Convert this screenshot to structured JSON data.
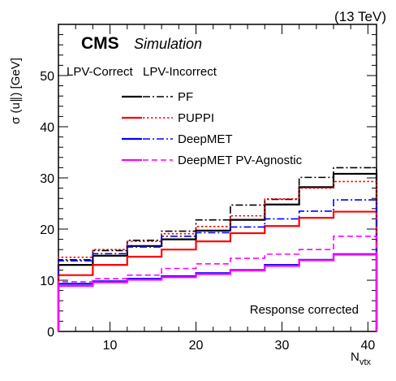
{
  "header": {
    "energy": "(13 TeV)"
  },
  "label": {
    "experiment": "CMS",
    "tag": "Simulation"
  },
  "annotation": "Response corrected",
  "axes": {
    "ylabel": "σ (u∥) [GeV]",
    "xlabel_main": "N",
    "xlabel_sub": "vtx"
  },
  "legend": {
    "col_headers": [
      "LPV-Correct",
      "LPV-Incorrect"
    ],
    "placement": "top-center"
  },
  "chart_data": {
    "type": "line",
    "style": "step",
    "bin_edges": [
      4,
      8,
      12,
      16,
      20,
      24,
      28,
      32,
      36,
      41
    ],
    "xlim": [
      4,
      41
    ],
    "ylim": [
      0,
      60
    ],
    "xticks": [
      10,
      20,
      30,
      40
    ],
    "yticks": [
      0,
      10,
      20,
      30,
      40,
      50
    ],
    "grid": false,
    "series": [
      {
        "name": "PF",
        "color": "#000000",
        "variant": "LPV-Correct",
        "dash": "solid",
        "values": [
          13.0,
          14.8,
          16.7,
          18.0,
          19.7,
          21.8,
          24.8,
          28.2,
          30.8
        ]
      },
      {
        "name": "PF",
        "color": "#000000",
        "variant": "LPV-Incorrect",
        "dash": "dashdot",
        "values": [
          14.0,
          15.8,
          17.8,
          19.6,
          21.8,
          24.7,
          25.8,
          30.1,
          32.0
        ]
      },
      {
        "name": "PUPPI",
        "color": "#ff0000",
        "variant": "LPV-Correct",
        "dash": "solid",
        "values": [
          11.0,
          13.0,
          14.6,
          16.0,
          17.6,
          19.2,
          20.6,
          22.2,
          23.4
        ]
      },
      {
        "name": "PUPPI",
        "color": "#ff0000",
        "variant": "LPV-Incorrect",
        "dash": "dotted",
        "values": [
          14.5,
          16.0,
          17.6,
          19.1,
          20.5,
          22.6,
          25.9,
          28.0,
          29.3
        ]
      },
      {
        "name": "DeepMET",
        "color": "#0000ff",
        "variant": "LPV-Correct",
        "dash": "solid",
        "values": [
          9.3,
          9.8,
          10.3,
          10.8,
          11.4,
          12.0,
          13.0,
          14.0,
          15.1
        ]
      },
      {
        "name": "DeepMET",
        "color": "#0000ff",
        "variant": "LPV-Incorrect",
        "dash": "dashdot",
        "values": [
          13.8,
          15.2,
          16.5,
          18.6,
          19.3,
          20.4,
          22.0,
          23.5,
          25.7
        ]
      },
      {
        "name": "DeepMET PV-Agnostic",
        "color": "#ff00ff",
        "variant": "LPV-Correct",
        "dash": "solid",
        "values": [
          8.9,
          9.6,
          10.1,
          10.6,
          11.2,
          11.9,
          12.8,
          13.9,
          15.0
        ]
      },
      {
        "name": "DeepMET PV-Agnostic",
        "color": "#ff00ff",
        "variant": "LPV-Incorrect",
        "dash": "dashed",
        "values": [
          9.7,
          10.3,
          11.0,
          12.3,
          13.2,
          14.3,
          15.1,
          16.0,
          18.6
        ]
      }
    ]
  }
}
